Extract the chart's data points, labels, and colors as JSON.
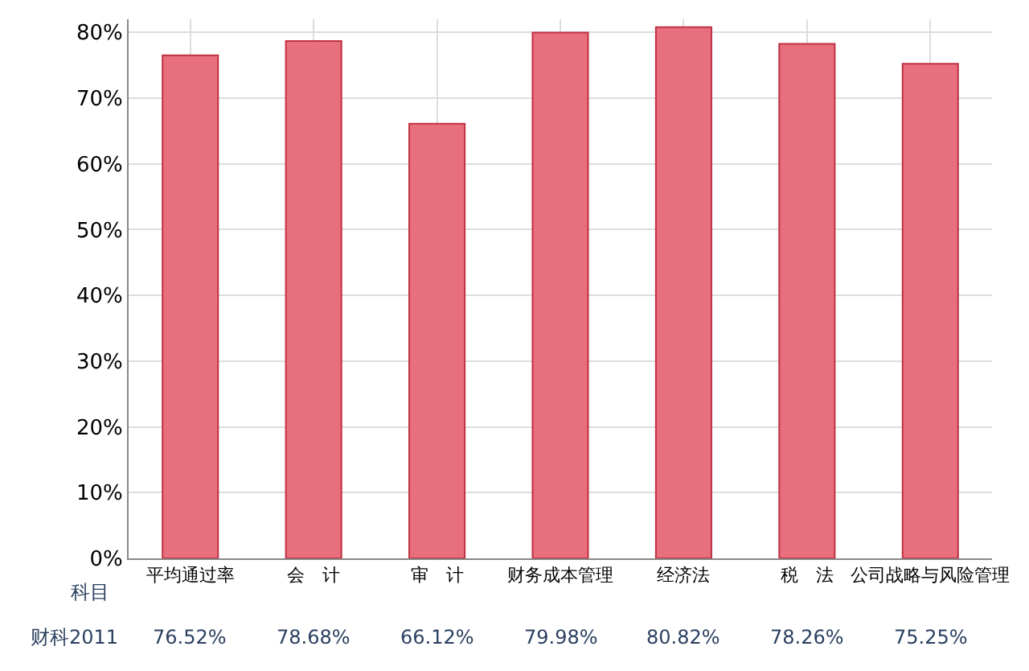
{
  "chart_data": {
    "type": "bar",
    "xlabel": "科目",
    "categories": [
      "平均通过率",
      "会　计",
      "审　计",
      "财务成本管理",
      "经济法",
      "税　法",
      "公司战略与风险管理"
    ],
    "series": [
      {
        "name": "财科2011",
        "color": "#e8707e",
        "values": [
          76.52,
          78.68,
          66.12,
          79.98,
          80.82,
          78.26,
          75.25
        ]
      }
    ],
    "value_labels": [
      "76.52%",
      "78.68%",
      "66.12%",
      "79.98%",
      "80.82%",
      "78.26%",
      "75.25%"
    ],
    "ylim": [
      0,
      82
    ],
    "yticks": [
      {
        "value": 0,
        "label": "0%"
      },
      {
        "value": 10,
        "label": "10%"
      },
      {
        "value": 20,
        "label": "20%"
      },
      {
        "value": 30,
        "label": "30%"
      },
      {
        "value": 40,
        "label": "40%"
      },
      {
        "value": 50,
        "label": "50%"
      },
      {
        "value": 60,
        "label": "60%"
      },
      {
        "value": 70,
        "label": "70%"
      },
      {
        "value": 80,
        "label": "80%"
      }
    ],
    "grid": true,
    "legend": false
  }
}
